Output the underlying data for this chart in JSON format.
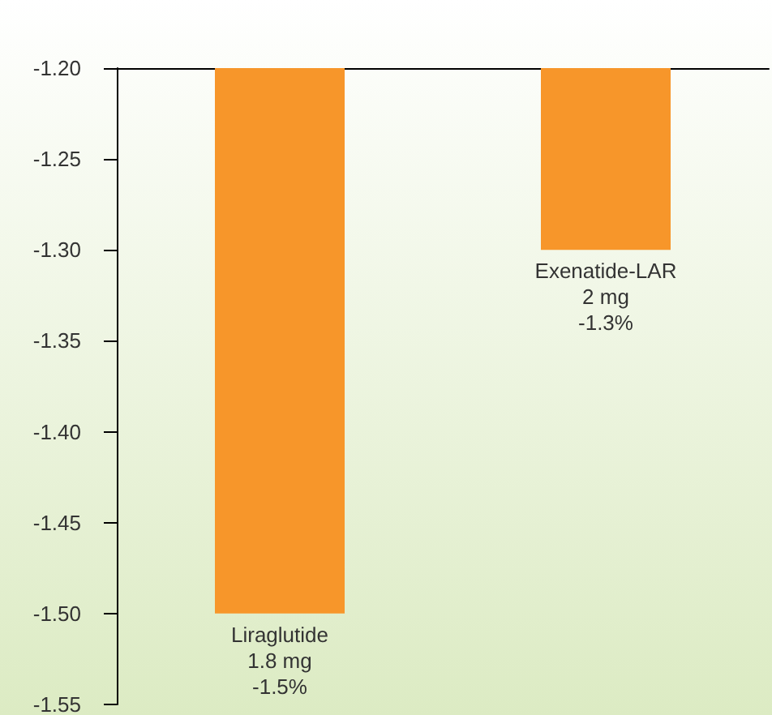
{
  "chart_data": {
    "type": "bar",
    "categories": [
      "Liraglutide\n1.8 mg",
      "Exenatide-LAR\n2 mg"
    ],
    "values": [
      -1.5,
      -1.3
    ],
    "value_labels": [
      "-1.5%",
      "-1.3%"
    ],
    "color": "#f7962a",
    "ylim": [
      -1.55,
      -1.2
    ],
    "yticks": [
      -1.55,
      {
        "value": -1.5,
        "label": "-1.50"
      },
      -1.45,
      {
        "value": -1.4,
        "label": "-1.40"
      },
      -1.35,
      {
        "value": -1.3,
        "label": "-1.30"
      },
      -1.25,
      {
        "value": -1.2,
        "label": "-1.20"
      }
    ],
    "tick_labels": "y",
    "grid": false
  }
}
